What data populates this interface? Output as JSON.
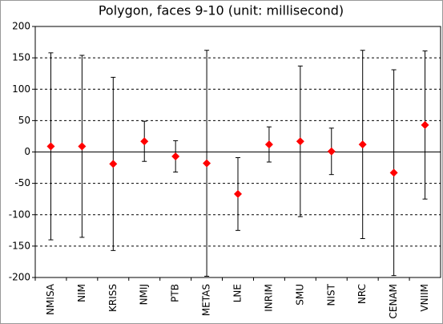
{
  "chart_data": {
    "type": "errorbar",
    "title": "Polygon, faces 9-10 (unit: millisecond)",
    "categories": [
      "NMISA",
      "NIM",
      "KRISS",
      "NMIJ",
      "PTB",
      "METAS",
      "LNE",
      "INRIM",
      "SMU",
      "NIST",
      "NRC",
      "CENAM",
      "VNIIM"
    ],
    "values": [
      9,
      9,
      -19,
      17,
      -7,
      -18,
      -67,
      12,
      17,
      1,
      12,
      -33,
      43
    ],
    "errors": [
      149,
      145,
      138,
      32,
      25,
      180,
      58,
      28,
      120,
      37,
      150,
      164,
      118
    ],
    "color": "#ff0000",
    "ylim": [
      -200,
      200
    ],
    "yticks": [
      -200,
      -150,
      -100,
      -50,
      0,
      50,
      100,
      150,
      200
    ],
    "grid": true
  }
}
